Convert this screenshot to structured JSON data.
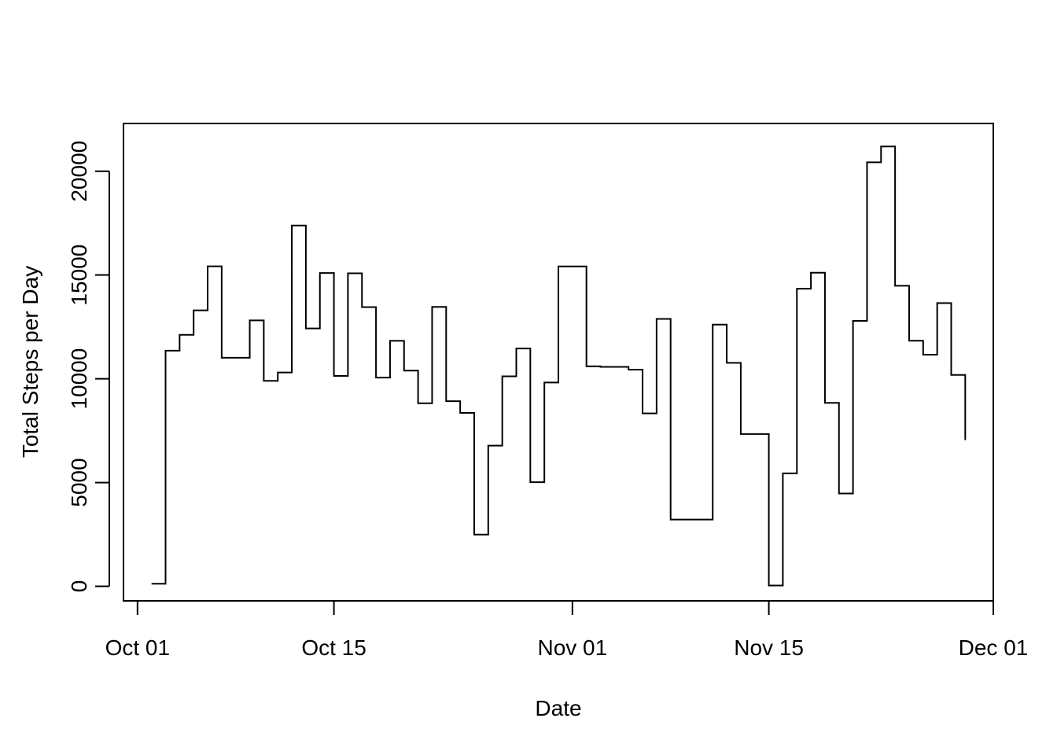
{
  "chart_data": {
    "type": "line",
    "style": "step",
    "title": "",
    "xlabel": "Date",
    "ylabel": "Total Steps per Day",
    "xlim": [
      "2012-09-30",
      "2012-12-01"
    ],
    "ylim": [
      -700,
      22300
    ],
    "x_ticks": [
      {
        "date": "2012-10-01",
        "label": "Oct 01"
      },
      {
        "date": "2012-10-15",
        "label": "Oct 15"
      },
      {
        "date": "2012-11-01",
        "label": "Nov 01"
      },
      {
        "date": "2012-11-15",
        "label": "Nov 15"
      },
      {
        "date": "2012-12-01",
        "label": "Dec 01"
      }
    ],
    "y_ticks": [
      {
        "value": 0,
        "label": "0"
      },
      {
        "value": 5000,
        "label": "5000"
      },
      {
        "value": 10000,
        "label": "10000"
      },
      {
        "value": 15000,
        "label": "15000"
      },
      {
        "value": 20000,
        "label": "20000"
      }
    ],
    "grid": false,
    "legend": "none",
    "color": "#000000",
    "series": [
      {
        "x": [
          "2012-10-02",
          "2012-10-03",
          "2012-10-04",
          "2012-10-05",
          "2012-10-06",
          "2012-10-07",
          "2012-10-09",
          "2012-10-10",
          "2012-10-11",
          "2012-10-12",
          "2012-10-13",
          "2012-10-14",
          "2012-10-15",
          "2012-10-16",
          "2012-10-17",
          "2012-10-18",
          "2012-10-19",
          "2012-10-20",
          "2012-10-21",
          "2012-10-22",
          "2012-10-23",
          "2012-10-24",
          "2012-10-25",
          "2012-10-26",
          "2012-10-27",
          "2012-10-28",
          "2012-10-29",
          "2012-10-30",
          "2012-10-31",
          "2012-11-02",
          "2012-11-03",
          "2012-11-05",
          "2012-11-06",
          "2012-11-07",
          "2012-11-08",
          "2012-11-11",
          "2012-11-12",
          "2012-11-13",
          "2012-11-15",
          "2012-11-16",
          "2012-11-17",
          "2012-11-18",
          "2012-11-19",
          "2012-11-20",
          "2012-11-21",
          "2012-11-22",
          "2012-11-23",
          "2012-11-24",
          "2012-11-25",
          "2012-11-26",
          "2012-11-27",
          "2012-11-28",
          "2012-11-29"
        ],
        "values": [
          126,
          11352,
          12116,
          13294,
          15420,
          11015,
          12811,
          9900,
          10304,
          17382,
          12426,
          15098,
          10139,
          15084,
          13452,
          10056,
          11829,
          10395,
          8821,
          13460,
          8918,
          8355,
          2492,
          6778,
          10119,
          11458,
          5018,
          9819,
          15414,
          10600,
          10571,
          10439,
          8334,
          12883,
          3219,
          12608,
          10765,
          7336,
          41,
          5441,
          14339,
          15110,
          8841,
          4472,
          12787,
          20427,
          21194,
          14478,
          11834,
          11162,
          13646,
          10183,
          7047
        ]
      }
    ]
  }
}
